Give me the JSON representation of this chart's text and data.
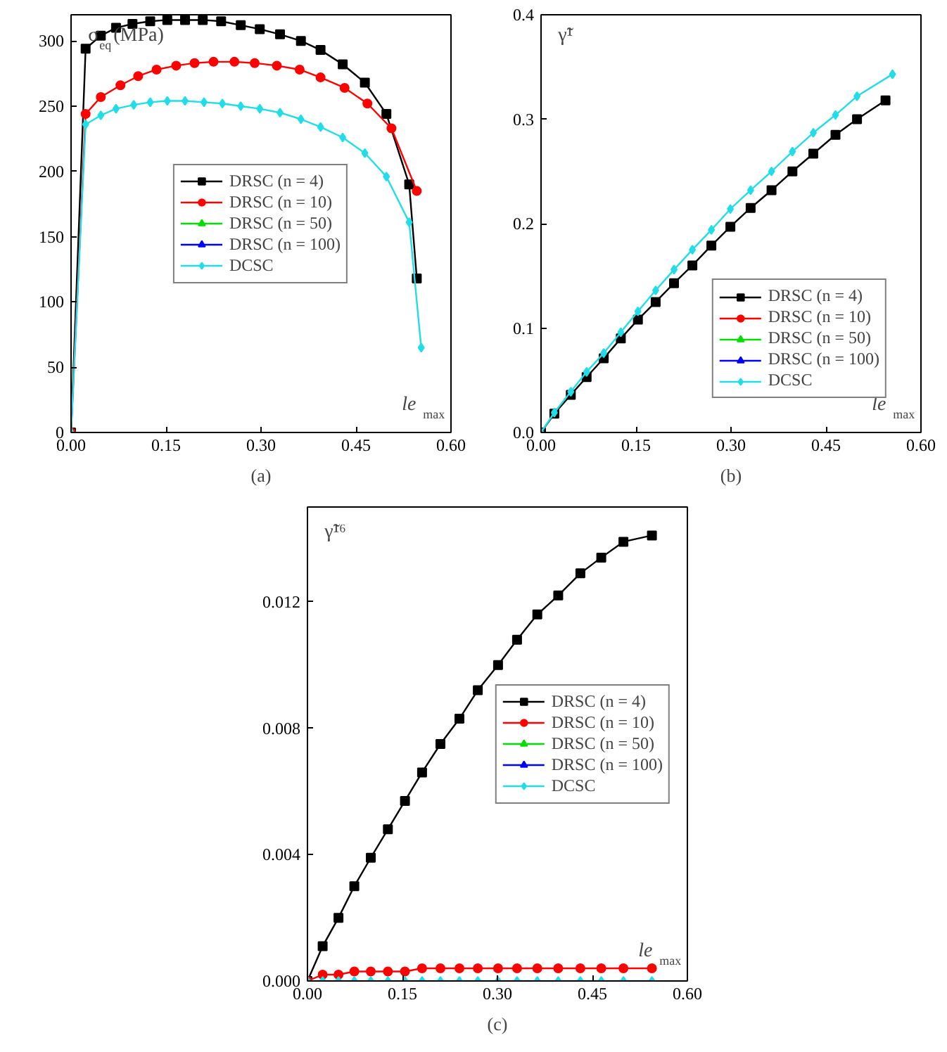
{
  "chart_data": [
    {
      "type": "line",
      "xlabel": "le$_{max}$",
      "ylabel": "σ$_{eq}$(MPa)",
      "annotations": [
        "(a)"
      ],
      "xlim": [
        0,
        0.6
      ],
      "xticks": [
        {
          "value": 0,
          "label": "0.00"
        },
        0.15,
        {
          "value": 0.3,
          "label": "0.30"
        },
        0.45,
        {
          "value": 0.6,
          "label": "0.60"
        }
      ],
      "ylim": [
        0,
        320
      ],
      "yticks": [
        0,
        50,
        100,
        150,
        200,
        250,
        300
      ],
      "grid": false,
      "legend": "center",
      "line_style": "solid",
      "series": [
        {
          "name": "DRSC (n = 4)",
          "color": "#000000",
          "marker": "square",
          "x": [
            0,
            0.023,
            0.047,
            0.071,
            0.097,
            0.125,
            0.152,
            0.18,
            0.208,
            0.237,
            0.268,
            0.298,
            0.33,
            0.363,
            0.394,
            0.429,
            0.464,
            0.498,
            0.534,
            0.546
          ],
          "values": [
            0,
            294,
            304,
            310,
            313,
            315,
            316,
            316,
            316,
            315,
            312,
            309,
            305,
            300,
            293,
            282,
            268,
            244,
            190,
            118
          ]
        },
        {
          "name": "DRSC (n = 10)",
          "color": "#ff0000",
          "marker": "circle",
          "x": [
            0,
            0.023,
            0.047,
            0.078,
            0.106,
            0.135,
            0.166,
            0.195,
            0.225,
            0.258,
            0.29,
            0.325,
            0.361,
            0.394,
            0.432,
            0.468,
            0.506,
            0.546
          ],
          "values": [
            0,
            244,
            257,
            266,
            273,
            278,
            281,
            283,
            284,
            284,
            283,
            281,
            278,
            272,
            264,
            252,
            233,
            185
          ]
        },
        {
          "name": "DRSC (n = 50)",
          "color": "#00dd00",
          "marker": "triangle"
        },
        {
          "name": "DRSC (n = 100)",
          "color": "#0000ff",
          "marker": "triangle"
        },
        {
          "name": "DCSC",
          "color": "#22dde8",
          "marker": "diamond",
          "x": [
            0,
            0.023,
            0.047,
            0.071,
            0.099,
            0.125,
            0.152,
            0.18,
            0.21,
            0.239,
            0.268,
            0.298,
            0.33,
            0.363,
            0.394,
            0.429,
            0.464,
            0.498,
            0.534,
            0.553
          ],
          "values": [
            0,
            236,
            243,
            248,
            251,
            253,
            254,
            254,
            253,
            252,
            250,
            248,
            245,
            240,
            234,
            226,
            214,
            196,
            161,
            65
          ]
        }
      ]
    },
    {
      "type": "line",
      "xlabel": "le$_{max}$",
      "ylabel": "γ̃¹",
      "annotations": [
        "(b)"
      ],
      "xlim": [
        0,
        0.6
      ],
      "xticks": [
        {
          "value": 0,
          "label": "0.00"
        },
        0.15,
        {
          "value": 0.3,
          "label": "0.30"
        },
        0.45,
        {
          "value": 0.6,
          "label": "0.60"
        }
      ],
      "ylim": [
        0,
        0.4
      ],
      "yticks": [
        {
          "value": 0,
          "label": "0.0"
        },
        0.1,
        0.2,
        0.3,
        0.4
      ],
      "grid": false,
      "legend": "bottom right",
      "line_style": "solid",
      "series": [
        {
          "name": "DRSC (n = 4)",
          "color": "#000000",
          "marker": "square",
          "x": [
            0,
            0.021,
            0.047,
            0.072,
            0.099,
            0.126,
            0.153,
            0.181,
            0.21,
            0.239,
            0.269,
            0.299,
            0.331,
            0.364,
            0.397,
            0.43,
            0.465,
            0.499,
            0.544
          ],
          "values": [
            0,
            0.018,
            0.036,
            0.053,
            0.071,
            0.09,
            0.108,
            0.125,
            0.143,
            0.16,
            0.179,
            0.197,
            0.215,
            0.232,
            0.25,
            0.267,
            0.285,
            0.3,
            0.318
          ]
        },
        {
          "name": "DRSC (n = 10)",
          "color": "#ff0000",
          "marker": "circle"
        },
        {
          "name": "DRSC (n = 50)",
          "color": "#00dd00",
          "marker": "triangle"
        },
        {
          "name": "DRSC (n = 100)",
          "color": "#0000ff",
          "marker": "triangle"
        },
        {
          "name": "DCSC",
          "color": "#22dde8",
          "marker": "diamond",
          "x": [
            0,
            0.021,
            0.047,
            0.072,
            0.099,
            0.126,
            0.153,
            0.181,
            0.21,
            0.239,
            0.269,
            0.299,
            0.331,
            0.364,
            0.397,
            0.43,
            0.465,
            0.499,
            0.555
          ],
          "values": [
            0,
            0.019,
            0.039,
            0.058,
            0.076,
            0.096,
            0.116,
            0.136,
            0.156,
            0.175,
            0.194,
            0.214,
            0.232,
            0.25,
            0.269,
            0.287,
            0.304,
            0.322,
            0.343
          ]
        }
      ]
    },
    {
      "type": "line",
      "xlabel": "le$_{max}$",
      "ylabel": "γ̃¹⁶",
      "annotations": [
        "(c)"
      ],
      "xlim": [
        0,
        0.6
      ],
      "xticks": [
        {
          "value": 0,
          "label": "0.00"
        },
        0.15,
        {
          "value": 0.3,
          "label": "0.30"
        },
        0.45,
        {
          "value": 0.6,
          "label": "0.60"
        }
      ],
      "ylim": [
        0,
        0.015
      ],
      "yticks": [
        {
          "value": 0,
          "label": "0.000"
        },
        0.004,
        0.008,
        0.012
      ],
      "grid": false,
      "legend": "right",
      "line_style": "solid",
      "series": [
        {
          "name": "DRSC (n = 4)",
          "color": "#000000",
          "marker": "square",
          "x": [
            0,
            0.024,
            0.049,
            0.074,
            0.1,
            0.127,
            0.154,
            0.181,
            0.21,
            0.24,
            0.269,
            0.301,
            0.331,
            0.363,
            0.396,
            0.431,
            0.464,
            0.499,
            0.544
          ],
          "values": [
            0,
            0.0011,
            0.002,
            0.003,
            0.0039,
            0.0048,
            0.0057,
            0.0066,
            0.0075,
            0.0083,
            0.0092,
            0.01,
            0.0108,
            0.0116,
            0.0122,
            0.0129,
            0.0134,
            0.0139,
            0.0141
          ]
        },
        {
          "name": "DRSC (n = 10)",
          "color": "#ff0000",
          "marker": "circle",
          "x": [
            0,
            0.024,
            0.049,
            0.074,
            0.1,
            0.127,
            0.154,
            0.181,
            0.21,
            0.24,
            0.269,
            0.301,
            0.331,
            0.363,
            0.396,
            0.431,
            0.464,
            0.499,
            0.544
          ],
          "values": [
            0,
            0.0002,
            0.0002,
            0.0003,
            0.0003,
            0.0003,
            0.0003,
            0.0004,
            0.0004,
            0.0004,
            0.0004,
            0.0004,
            0.0004,
            0.0004,
            0.0004,
            0.0004,
            0.0004,
            0.0004,
            0.0004
          ]
        },
        {
          "name": "DRSC (n = 50)",
          "color": "#00dd00",
          "marker": "triangle"
        },
        {
          "name": "DRSC (n = 100)",
          "color": "#0000ff",
          "marker": "triangle"
        },
        {
          "name": "DCSC",
          "color": "#22dde8",
          "marker": "diamond",
          "x": [
            0,
            0.024,
            0.049,
            0.074,
            0.1,
            0.127,
            0.154,
            0.181,
            0.21,
            0.24,
            0.269,
            0.301,
            0.331,
            0.363,
            0.396,
            0.431,
            0.464,
            0.499,
            0.544
          ],
          "values": [
            0,
            0,
            0,
            0,
            0,
            0,
            0,
            0,
            0,
            0,
            0,
            0,
            0,
            0,
            0,
            0,
            0,
            0,
            0
          ]
        }
      ]
    }
  ]
}
